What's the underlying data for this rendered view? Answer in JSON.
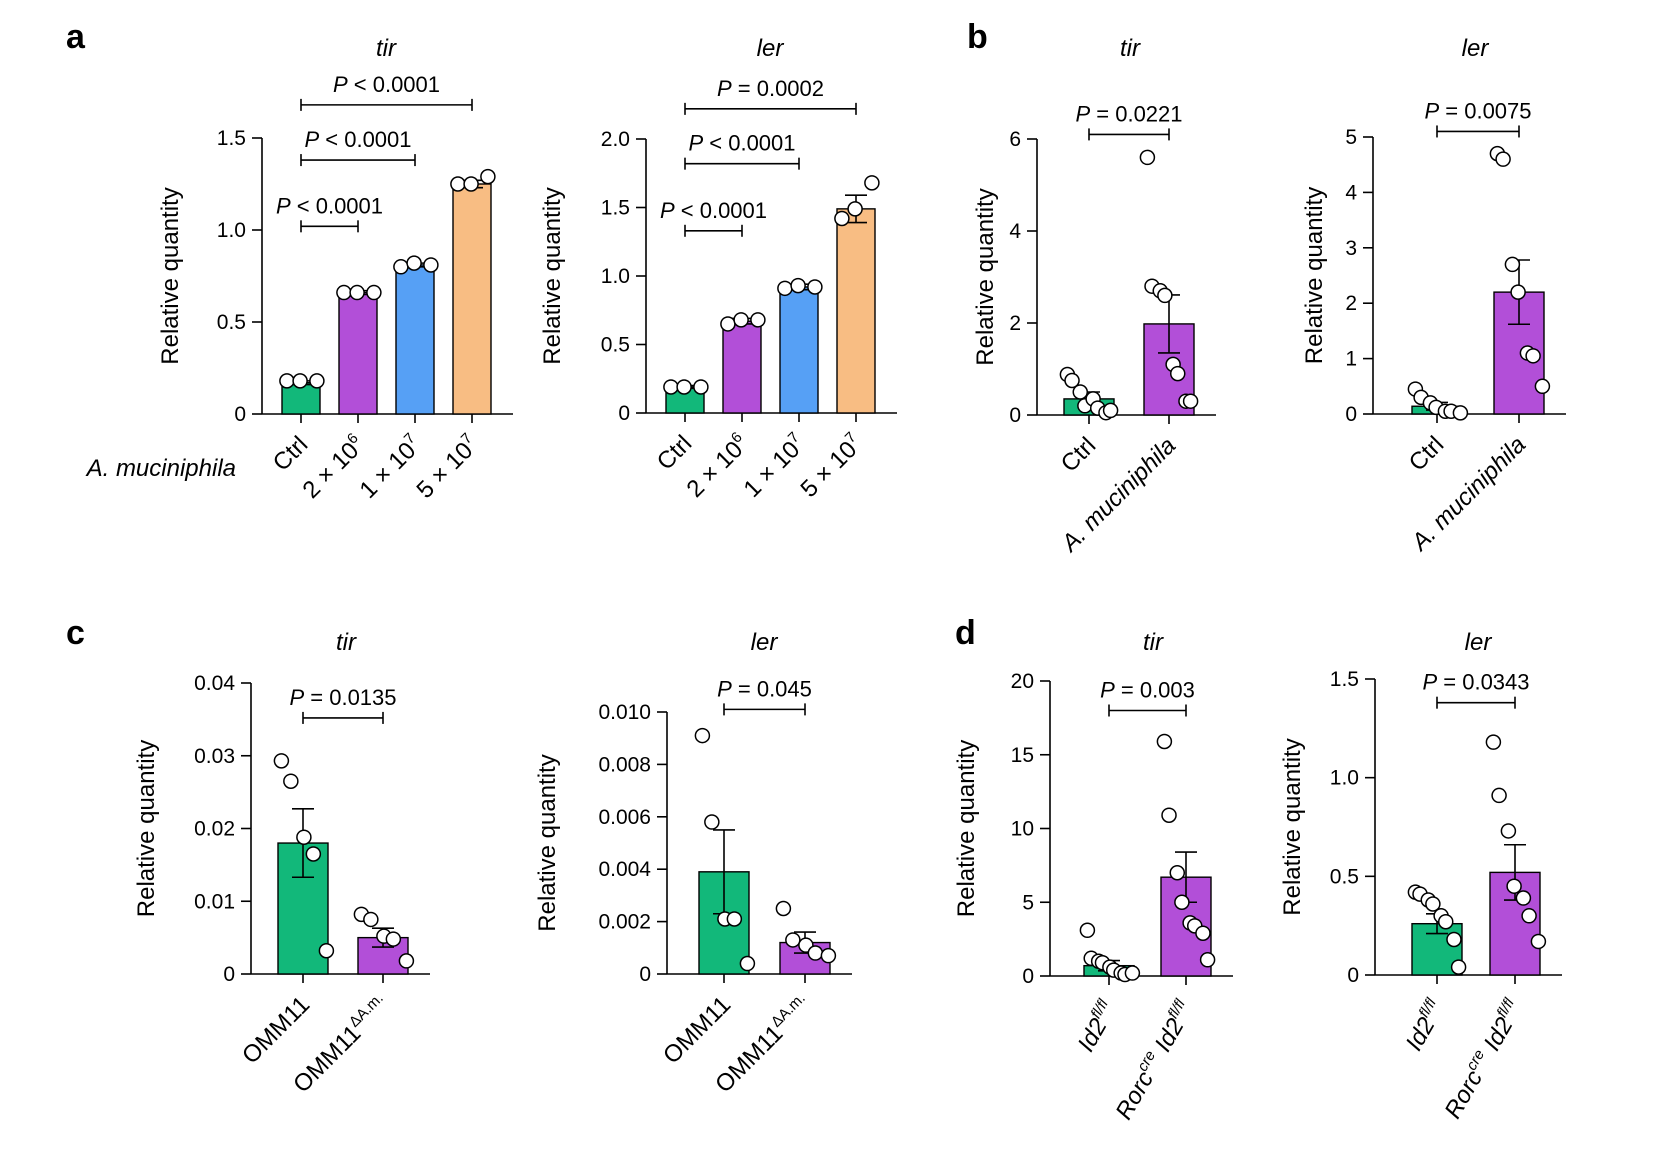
{
  "panel_letters": [
    "a",
    "b",
    "c",
    "d"
  ],
  "row_label_a": "A. muciniphila",
  "colors": {
    "green": "#12b87a",
    "purple": "#b24fd8",
    "blue": "#56a0f5",
    "orange": "#f8bd83",
    "axis": "#000000"
  },
  "chart_data": [
    {
      "type": "bar",
      "panel": "a",
      "title": "tir",
      "ylabel": "Relative quantity",
      "xlabel": "A. muciniphila",
      "ylim": [
        0,
        1.5
      ],
      "yticks": [
        {
          "v": 0,
          "t": "0"
        },
        {
          "v": 0.5,
          "t": "0.5"
        },
        {
          "v": 1.0,
          "t": "1.0"
        },
        {
          "v": 1.5,
          "t": "1.5"
        }
      ],
      "categories": [
        {
          "base": "Ctrl"
        },
        {
          "base": "2 × 10",
          "sup": "6"
        },
        {
          "base": "1 × 10",
          "sup": "7"
        },
        {
          "base": "5 × 10",
          "sup": "7"
        }
      ],
      "values": [
        0.17,
        0.66,
        0.81,
        1.25
      ],
      "errors": [
        0.01,
        0.01,
        0.01,
        0.02
      ],
      "colors": [
        "green",
        "purple",
        "blue",
        "orange"
      ],
      "points": [
        [
          0.18,
          0.18,
          0.18
        ],
        [
          0.66,
          0.66,
          0.66
        ],
        [
          0.8,
          0.82,
          0.81
        ],
        [
          1.25,
          1.25,
          1.29
        ]
      ],
      "comparisons": [
        {
          "from": 0,
          "to": 1,
          "y": 1.02,
          "label": "< 0.0001"
        },
        {
          "from": 0,
          "to": 2,
          "y": 1.38,
          "label": "< 0.0001"
        },
        {
          "from": 0,
          "to": 3,
          "y": 1.68,
          "label": "< 0.0001"
        }
      ]
    },
    {
      "type": "bar",
      "panel": "a",
      "title": "ler",
      "ylabel": "Relative quantity",
      "xlabel": "",
      "ylim": [
        0,
        2.0
      ],
      "yticks": [
        {
          "v": 0,
          "t": "0"
        },
        {
          "v": 0.5,
          "t": "0.5"
        },
        {
          "v": 1.0,
          "t": "1.0"
        },
        {
          "v": 1.5,
          "t": "1.5"
        },
        {
          "v": 2.0,
          "t": "2.0"
        }
      ],
      "categories": [
        {
          "base": "Ctrl"
        },
        {
          "base": "2 × 10",
          "sup": "6"
        },
        {
          "base": "1 × 10",
          "sup": "7"
        },
        {
          "base": "5 × 10",
          "sup": "7"
        }
      ],
      "values": [
        0.19,
        0.67,
        0.92,
        1.49
      ],
      "errors": [
        0.01,
        0.02,
        0.02,
        0.1
      ],
      "colors": [
        "green",
        "purple",
        "blue",
        "orange"
      ],
      "points": [
        [
          0.19,
          0.19,
          0.19
        ],
        [
          0.65,
          0.68,
          0.68
        ],
        [
          0.91,
          0.93,
          0.92
        ],
        [
          1.42,
          1.49,
          1.68
        ]
      ],
      "comparisons": [
        {
          "from": 0,
          "to": 1,
          "y": 1.33,
          "label": "< 0.0001"
        },
        {
          "from": 0,
          "to": 2,
          "y": 1.82,
          "label": "< 0.0001"
        },
        {
          "from": 0,
          "to": 3,
          "y": 2.22,
          "label": "= 0.0002"
        }
      ]
    },
    {
      "type": "bar",
      "panel": "b",
      "title": "tir",
      "ylabel": "Relative quantity",
      "xlabel": "",
      "ylim": [
        0,
        6
      ],
      "yticks": [
        {
          "v": 0,
          "t": "0"
        },
        {
          "v": 2,
          "t": "2"
        },
        {
          "v": 4,
          "t": "4"
        },
        {
          "v": 6,
          "t": "6"
        }
      ],
      "categories": [
        {
          "base": "Ctrl"
        },
        {
          "base": "A. muciniphila",
          "italic": true
        }
      ],
      "values": [
        0.35,
        1.98
      ],
      "errors": [
        0.15,
        0.63
      ],
      "colors": [
        "green",
        "purple"
      ],
      "points": [
        [
          0.88,
          0.75,
          0.5,
          0.2,
          0.35,
          0.15,
          0.05,
          0.1
        ],
        [
          5.6,
          2.8,
          2.7,
          2.6,
          1.1,
          0.9,
          0.3,
          0.3
        ]
      ],
      "comparisons": [
        {
          "from": 0,
          "to": 1,
          "y": 6.1,
          "label": "= 0.0221"
        }
      ]
    },
    {
      "type": "bar",
      "panel": "b",
      "title": "ler",
      "ylabel": "Relative quantity",
      "xlabel": "",
      "ylim": [
        0,
        5
      ],
      "yticks": [
        {
          "v": 0,
          "t": "0"
        },
        {
          "v": 1,
          "t": "1"
        },
        {
          "v": 2,
          "t": "2"
        },
        {
          "v": 3,
          "t": "3"
        },
        {
          "v": 4,
          "t": "4"
        },
        {
          "v": 5,
          "t": "5"
        }
      ],
      "categories": [
        {
          "base": "Ctrl"
        },
        {
          "base": "A. muciniphila",
          "italic": true
        }
      ],
      "values": [
        0.14,
        2.2
      ],
      "errors": [
        0.07,
        0.58
      ],
      "colors": [
        "green",
        "purple"
      ],
      "points": [
        [
          0.45,
          0.3,
          0.2,
          0.12,
          0.05,
          0.05,
          0.02
        ],
        [
          4.7,
          4.6,
          2.7,
          2.2,
          1.1,
          1.05,
          0.5
        ]
      ],
      "comparisons": [
        {
          "from": 0,
          "to": 1,
          "y": 5.1,
          "label": "= 0.0075"
        }
      ]
    },
    {
      "type": "bar",
      "panel": "c",
      "title": "tir",
      "ylabel": "Relative quantity",
      "xlabel": "",
      "ylim": [
        0,
        0.04
      ],
      "yticks": [
        {
          "v": 0,
          "t": "0"
        },
        {
          "v": 0.01,
          "t": "0.01"
        },
        {
          "v": 0.02,
          "t": "0.02"
        },
        {
          "v": 0.03,
          "t": "0.03"
        },
        {
          "v": 0.04,
          "t": "0.04"
        }
      ],
      "categories": [
        {
          "base": "OMM11"
        },
        {
          "base": "OMM11",
          "sup": "ΔA.m."
        }
      ],
      "values": [
        0.018,
        0.005
      ],
      "errors": [
        0.0047,
        0.0013
      ],
      "colors": [
        "green",
        "purple"
      ],
      "points": [
        [
          0.0293,
          0.0265,
          0.0188,
          0.0165,
          0.0032
        ],
        [
          0.0082,
          0.0075,
          0.0052,
          0.0048,
          0.0018
        ]
      ],
      "comparisons": [
        {
          "from": 0,
          "to": 1,
          "y": 0.0352,
          "label": "= 0.0135"
        }
      ]
    },
    {
      "type": "bar",
      "panel": "c",
      "title": "ler",
      "ylabel": "Relative quantity",
      "xlabel": "",
      "ylim": [
        0,
        0.01
      ],
      "yticks": [
        {
          "v": 0,
          "t": "0"
        },
        {
          "v": 0.002,
          "t": "0.002"
        },
        {
          "v": 0.004,
          "t": "0.004"
        },
        {
          "v": 0.006,
          "t": "0.006"
        },
        {
          "v": 0.008,
          "t": "0.008"
        },
        {
          "v": 0.01,
          "t": "0.010"
        }
      ],
      "categories": [
        {
          "base": "OMM11"
        },
        {
          "base": "OMM11",
          "sup": "ΔA.m."
        }
      ],
      "values": [
        0.0039,
        0.0012
      ],
      "errors": [
        0.0016,
        0.0004
      ],
      "colors": [
        "green",
        "purple"
      ],
      "points": [
        [
          0.0091,
          0.0058,
          0.0021,
          0.0021,
          0.0004
        ],
        [
          0.0025,
          0.0013,
          0.0011,
          0.0008,
          0.0007
        ]
      ],
      "comparisons": [
        {
          "from": 0,
          "to": 1,
          "y": 0.0101,
          "label": "= 0.045"
        }
      ]
    },
    {
      "type": "bar",
      "panel": "d",
      "title": "tir",
      "ylabel": "Relative quantity",
      "xlabel": "",
      "ylim": [
        0,
        20
      ],
      "yticks": [
        {
          "v": 0,
          "t": "0"
        },
        {
          "v": 5,
          "t": "5"
        },
        {
          "v": 10,
          "t": "10"
        },
        {
          "v": 15,
          "t": "15"
        },
        {
          "v": 20,
          "t": "20"
        }
      ],
      "categories": [
        {
          "pre": "",
          "base": "Id2",
          "sup": "fl/fl",
          "italic": true
        },
        {
          "pre": "Rorc",
          "presup": "cre",
          "base": "Id2",
          "sup": "fl/fl",
          "italic": true
        }
      ],
      "values": [
        0.7,
        6.7
      ],
      "errors": [
        0.35,
        1.7
      ],
      "colors": [
        "green",
        "purple"
      ],
      "points": [
        [
          3.1,
          1.2,
          1.0,
          0.9,
          0.6,
          0.4,
          0.2,
          0.1,
          0.2
        ],
        [
          15.9,
          10.9,
          7.0,
          5.0,
          3.6,
          3.4,
          2.9,
          1.1
        ]
      ],
      "comparisons": [
        {
          "from": 0,
          "to": 1,
          "y": 18.0,
          "label": "= 0.003"
        }
      ]
    },
    {
      "type": "bar",
      "panel": "d",
      "title": "ler",
      "ylabel": "Relative quantity",
      "xlabel": "",
      "ylim": [
        0,
        1.5
      ],
      "yticks": [
        {
          "v": 0,
          "t": "0"
        },
        {
          "v": 0.5,
          "t": "0.5"
        },
        {
          "v": 1.0,
          "t": "1.0"
        },
        {
          "v": 1.5,
          "t": "1.5"
        }
      ],
      "categories": [
        {
          "pre": "",
          "base": "Id2",
          "sup": "fl/fl",
          "italic": true
        },
        {
          "pre": "Rorc",
          "presup": "cre",
          "base": "Id2",
          "sup": "fl/fl",
          "italic": true
        }
      ],
      "values": [
        0.26,
        0.52
      ],
      "errors": [
        0.05,
        0.14
      ],
      "colors": [
        "green",
        "purple"
      ],
      "points": [
        [
          0.42,
          0.41,
          0.38,
          0.36,
          0.3,
          0.27,
          0.18,
          0.04
        ],
        [
          1.18,
          0.91,
          0.73,
          0.45,
          0.39,
          0.3,
          0.17
        ]
      ],
      "comparisons": [
        {
          "from": 0,
          "to": 1,
          "y": 1.38,
          "label": "= 0.0343"
        }
      ]
    }
  ]
}
